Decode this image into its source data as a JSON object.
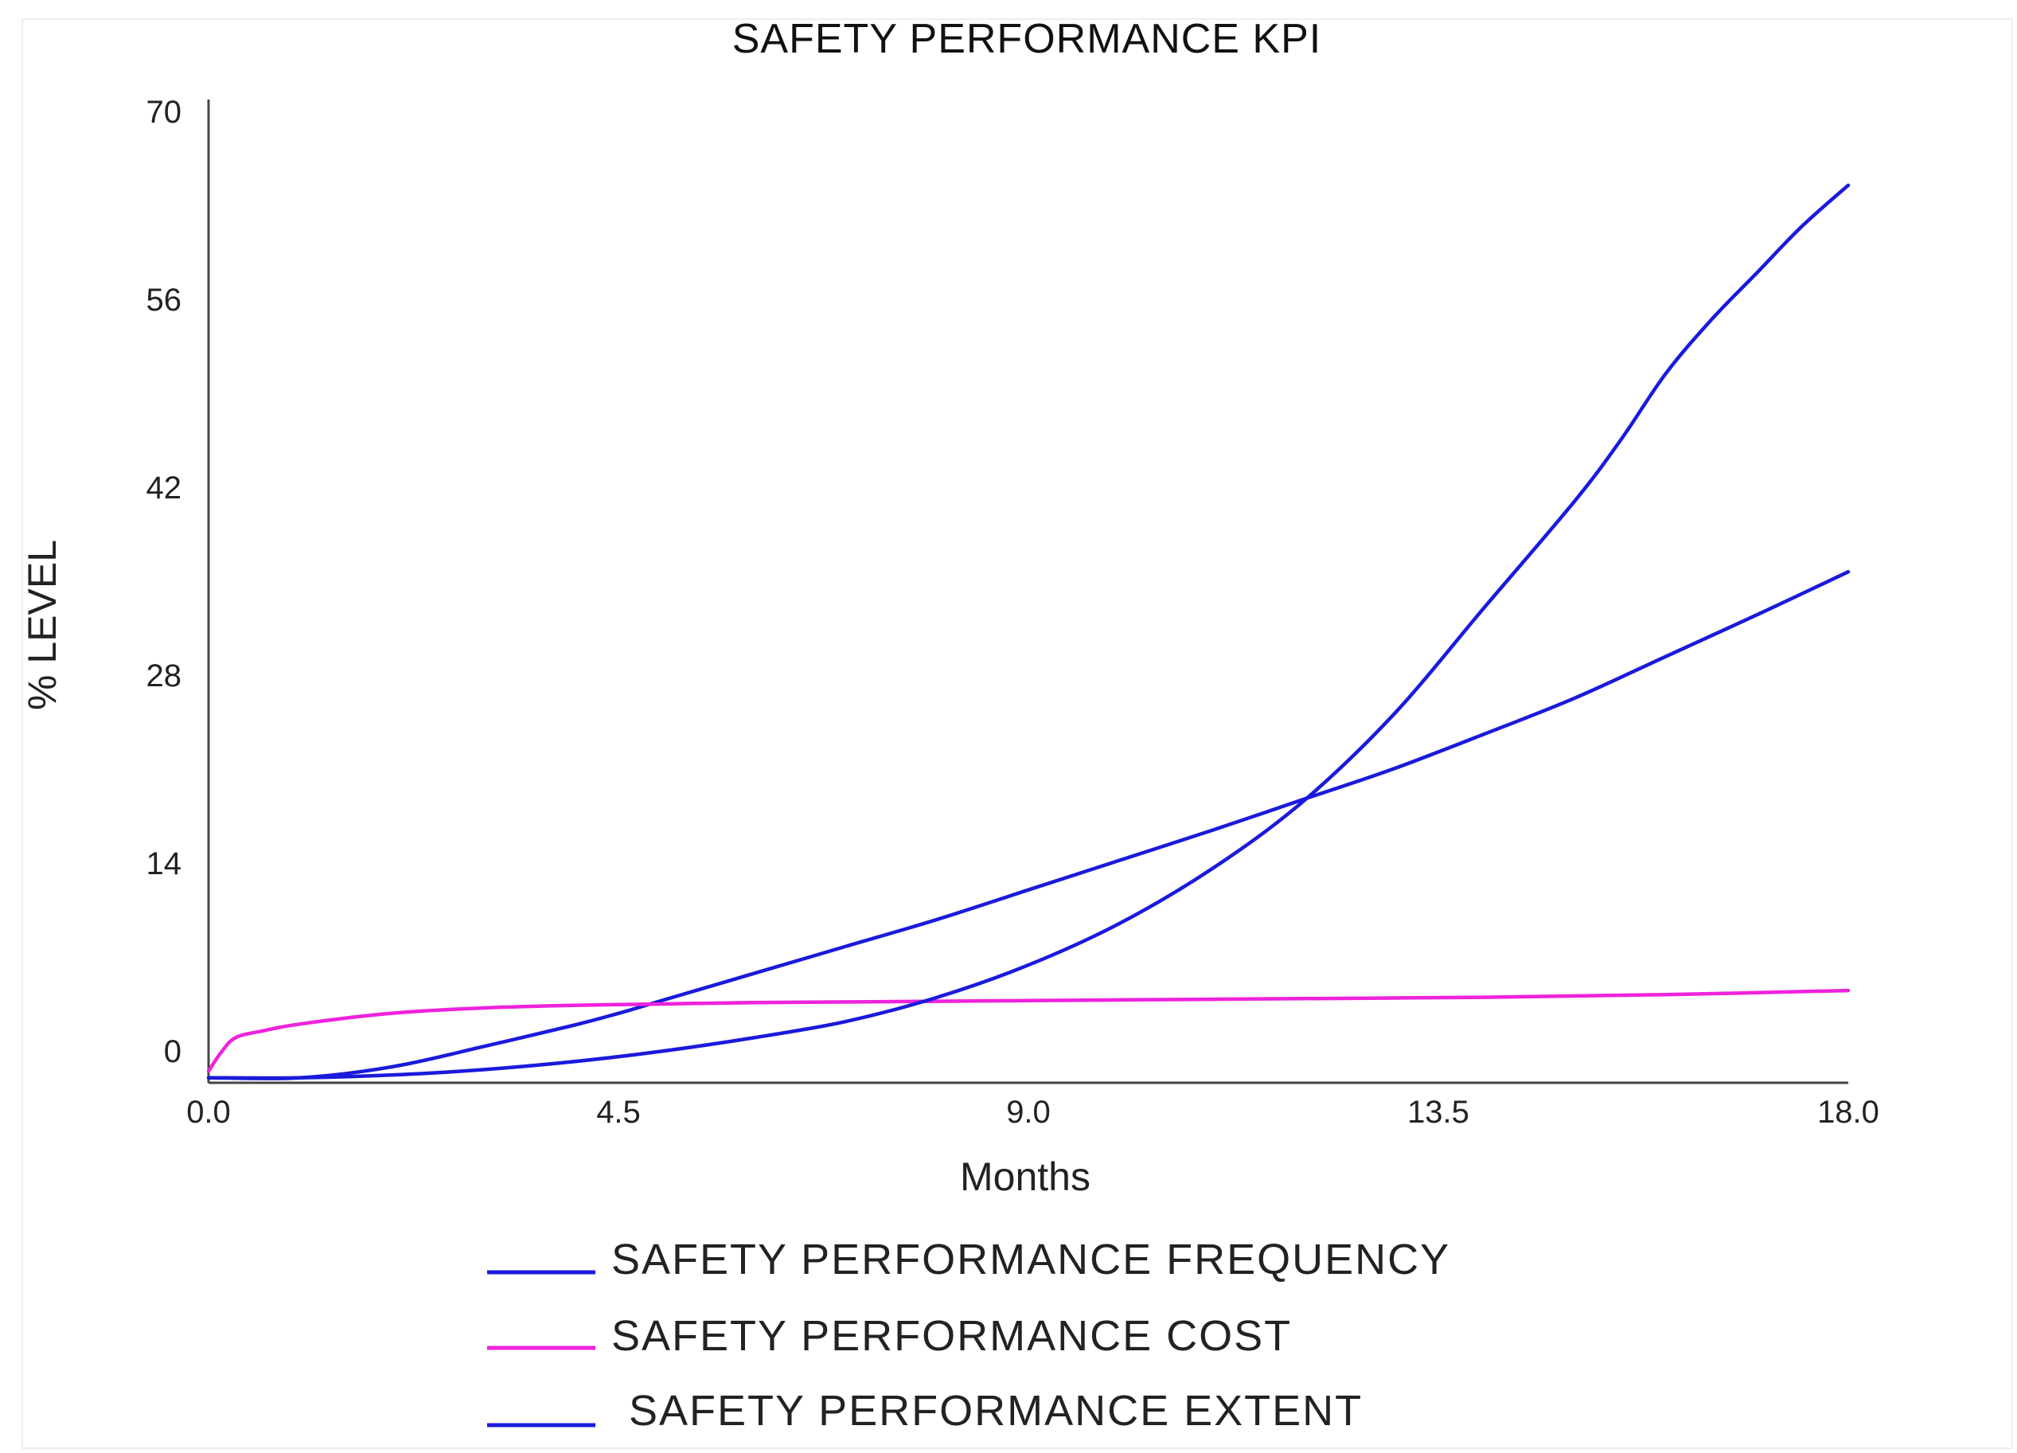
{
  "chart_data": {
    "type": "line",
    "title": "SAFETY PERFORMANCE KPI",
    "xlabel": "Months",
    "ylabel": "% LEVEL",
    "xlim": [
      0,
      18
    ],
    "ylim": [
      0,
      70
    ],
    "x_ticks": [
      "0.0",
      "4.5",
      "9.0",
      "13.5",
      "18.0"
    ],
    "y_ticks": [
      "0",
      "14",
      "28",
      "42",
      "56",
      "70"
    ],
    "grid": false,
    "legend_position": "bottom",
    "series": [
      {
        "name": "SAFETY PERFORMANCE FREQUENCY",
        "color": "#1a1adc",
        "x": [
          0,
          1,
          2,
          3,
          4,
          4.5,
          5,
          6,
          7,
          8,
          9,
          10,
          11,
          12,
          13,
          14,
          15,
          16,
          17,
          18
        ],
        "y": [
          -2,
          -2,
          -1.2,
          0.3,
          1.9,
          2.8,
          3.8,
          5.8,
          7.8,
          9.8,
          12,
          14.2,
          16.4,
          18.7,
          21,
          23.6,
          26.3,
          29.4,
          32.5,
          35.7
        ]
      },
      {
        "name": "SAFETY PERFORMANCE COST",
        "color": "#ee22dd",
        "x": [
          0,
          0.15,
          0.3,
          0.6,
          1,
          2,
          3,
          4,
          5,
          6,
          8,
          10,
          12,
          14,
          16,
          18
        ],
        "y": [
          -1.5,
          0,
          1,
          1.5,
          2,
          2.8,
          3.2,
          3.4,
          3.5,
          3.6,
          3.7,
          3.8,
          3.9,
          4,
          4.2,
          4.5
        ]
      },
      {
        "name": "SAFETY PERFORMANCE EXTENT",
        "color": "#1a1adc",
        "x": [
          0,
          1,
          2,
          3,
          4,
          5,
          6,
          7,
          8,
          9,
          10,
          11,
          12,
          13,
          14,
          15,
          15.5,
          16,
          16.5,
          17,
          17.5,
          18
        ],
        "y": [
          -2,
          -2,
          -1.8,
          -1.4,
          -0.8,
          0,
          1,
          2.2,
          4,
          6.4,
          9.5,
          13.5,
          18.5,
          25,
          33,
          41,
          45.5,
          50.5,
          54.5,
          58,
          61.5,
          64.5
        ]
      }
    ]
  }
}
